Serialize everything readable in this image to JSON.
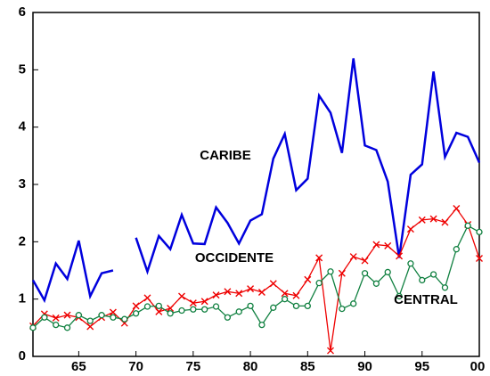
{
  "chart_data": {
    "type": "line",
    "x": [
      61,
      62,
      63,
      64,
      65,
      66,
      67,
      68,
      69,
      70,
      71,
      72,
      73,
      74,
      75,
      76,
      77,
      78,
      79,
      80,
      81,
      82,
      83,
      84,
      85,
      86,
      87,
      88,
      89,
      90,
      91,
      92,
      93,
      94,
      95,
      96,
      97,
      98,
      99,
      100
    ],
    "series": [
      {
        "name": "CARIBE",
        "color": "#0000dd",
        "marker": "none",
        "values": [
          1.33,
          0.98,
          1.62,
          1.35,
          2.02,
          1.05,
          1.45,
          1.5,
          null,
          2.07,
          1.48,
          2.1,
          1.87,
          2.47,
          1.97,
          1.96,
          2.6,
          2.33,
          1.97,
          2.37,
          2.48,
          3.45,
          3.88,
          2.9,
          3.1,
          4.55,
          4.25,
          3.55,
          5.2,
          3.68,
          3.6,
          3.05,
          1.72,
          3.17,
          3.35,
          4.97,
          3.48,
          3.9,
          3.83,
          3.38
        ]
      },
      {
        "name": "OCCIDENTE",
        "color": "#ee0000",
        "marker": "x",
        "values": [
          0.53,
          0.74,
          0.67,
          0.72,
          0.68,
          0.52,
          0.68,
          0.77,
          0.58,
          0.88,
          1.02,
          0.78,
          0.84,
          1.05,
          0.93,
          0.96,
          1.07,
          1.13,
          1.1,
          1.18,
          1.12,
          1.27,
          1.1,
          1.06,
          1.34,
          1.72,
          0.1,
          1.45,
          1.74,
          1.67,
          1.95,
          1.93,
          1.75,
          2.22,
          2.38,
          2.4,
          2.34,
          2.58,
          2.3,
          1.71
        ]
      },
      {
        "name": "CENTRAL",
        "color": "#108040",
        "marker": "circle",
        "values": [
          0.5,
          0.68,
          0.55,
          0.5,
          0.72,
          0.62,
          0.72,
          0.68,
          0.65,
          0.75,
          0.87,
          0.88,
          0.75,
          0.8,
          0.82,
          0.82,
          0.87,
          0.68,
          0.78,
          0.88,
          0.55,
          0.85,
          1.0,
          0.88,
          0.88,
          1.28,
          1.48,
          0.83,
          0.92,
          1.45,
          1.27,
          1.47,
          1.05,
          1.62,
          1.33,
          1.43,
          1.2,
          1.87,
          2.28,
          2.17
        ]
      }
    ],
    "xlim": [
      61,
      100
    ],
    "xticks": [
      65,
      70,
      75,
      80,
      85,
      90,
      95,
      {
        "value": 100,
        "label": "00"
      }
    ],
    "ylim": [
      0,
      6
    ],
    "yticks": [
      0,
      1,
      2,
      3,
      4,
      5,
      6
    ]
  }
}
